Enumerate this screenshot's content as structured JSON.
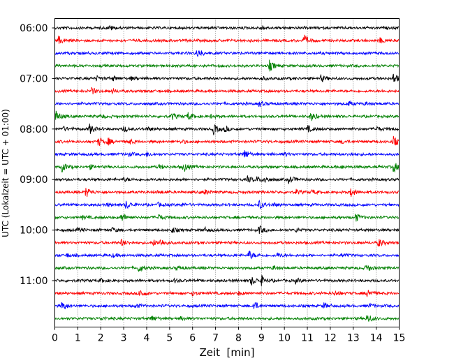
{
  "chart_data": {
    "type": "line",
    "subtype": "helicorder",
    "xlabel": "Zeit  [min]",
    "ylabel": "UTC (Lokalzeit = UTC + 01:00)",
    "xlim": [
      0,
      15
    ],
    "x_ticks": [
      "0",
      "1",
      "2",
      "3",
      "4",
      "5",
      "6",
      "7",
      "8",
      "9",
      "10",
      "11",
      "12",
      "13",
      "14",
      "15"
    ],
    "y_tick_labels": [
      "06:00",
      "07:00",
      "08:00",
      "09:00",
      "10:00",
      "11:00"
    ],
    "grid": "vertical dotted lines at each minute",
    "color_cycle": [
      "#000000",
      "#ff0000",
      "#0000ff",
      "#008000"
    ],
    "traces": [
      {
        "start": "06:00",
        "color": "black",
        "events": [
          [
            2.4,
            0.4
          ],
          [
            9.0,
            0.3
          ]
        ]
      },
      {
        "start": "06:15",
        "color": "red",
        "events": [
          [
            0.15,
            0.8
          ],
          [
            10.85,
            1.0
          ],
          [
            14.15,
            0.5
          ]
        ]
      },
      {
        "start": "06:30",
        "color": "blue",
        "events": [
          [
            6.2,
            0.9
          ]
        ]
      },
      {
        "start": "06:45",
        "color": "green",
        "events": [
          [
            9.35,
            1.0
          ]
        ]
      },
      {
        "start": "07:00",
        "color": "black",
        "events": [
          [
            1.8,
            0.4
          ],
          [
            2.5,
            0.4
          ],
          [
            3.3,
            0.3
          ],
          [
            9.0,
            0.3
          ],
          [
            11.6,
            0.6
          ],
          [
            14.75,
            1.0
          ]
        ]
      },
      {
        "start": "07:15",
        "color": "red",
        "events": [
          [
            1.6,
            0.6
          ],
          [
            2.5,
            0.4
          ]
        ]
      },
      {
        "start": "07:30",
        "color": "blue",
        "events": [
          [
            8.9,
            0.5
          ],
          [
            12.8,
            0.4
          ],
          [
            13.5,
            0.3
          ]
        ]
      },
      {
        "start": "07:45",
        "color": "green",
        "events": [
          [
            0.05,
            1.0
          ],
          [
            2.0,
            0.3
          ],
          [
            5.1,
            0.6
          ],
          [
            5.8,
            0.8
          ],
          [
            6.8,
            0.3
          ],
          [
            11.15,
            0.9
          ]
        ]
      },
      {
        "start": "08:00",
        "color": "black",
        "events": [
          [
            0.3,
            0.5
          ],
          [
            1.5,
            1.0
          ],
          [
            3.0,
            0.5
          ],
          [
            4.0,
            0.4
          ],
          [
            6.9,
            1.0
          ],
          [
            7.4,
            0.5
          ],
          [
            11.0,
            0.6
          ],
          [
            14.0,
            0.4
          ]
        ]
      },
      {
        "start": "08:15",
        "color": "red",
        "events": [
          [
            1.9,
            0.9
          ],
          [
            2.3,
            0.6
          ],
          [
            3.2,
            0.5
          ],
          [
            5.5,
            0.3
          ],
          [
            12.5,
            0.3
          ],
          [
            14.75,
            0.9
          ]
        ]
      },
      {
        "start": "08:30",
        "color": "blue",
        "events": [
          [
            3.2,
            0.3
          ],
          [
            4.0,
            0.4
          ],
          [
            8.25,
            0.9
          ],
          [
            10.0,
            0.3
          ],
          [
            12.8,
            0.3
          ]
        ]
      },
      {
        "start": "08:45",
        "color": "green",
        "events": [
          [
            0.3,
            0.9
          ],
          [
            1.5,
            0.4
          ],
          [
            4.5,
            0.4
          ],
          [
            5.6,
            0.9
          ],
          [
            12.5,
            0.3
          ],
          [
            14.75,
            1.0
          ]
        ]
      },
      {
        "start": "09:00",
        "color": "black",
        "events": [
          [
            3.0,
            0.3
          ],
          [
            8.4,
            0.6
          ],
          [
            8.8,
            0.4
          ],
          [
            9.1,
            0.6
          ],
          [
            10.2,
            0.8
          ]
        ]
      },
      {
        "start": "09:15",
        "color": "red",
        "events": [
          [
            1.35,
            1.0
          ],
          [
            4.5,
            0.3
          ],
          [
            6.5,
            0.5
          ],
          [
            10.5,
            0.4
          ],
          [
            11.2,
            0.4
          ],
          [
            12.9,
            0.8
          ]
        ]
      },
      {
        "start": "09:30",
        "color": "blue",
        "events": [
          [
            2.3,
            0.3
          ],
          [
            3.1,
            0.8
          ],
          [
            4.5,
            0.3
          ],
          [
            5.5,
            0.3
          ],
          [
            8.9,
            0.8
          ],
          [
            9.5,
            0.4
          ]
        ]
      },
      {
        "start": "09:45",
        "color": "green",
        "events": [
          [
            1.2,
            0.3
          ],
          [
            2.9,
            0.9
          ],
          [
            4.5,
            0.6
          ],
          [
            13.1,
            0.8
          ]
        ]
      },
      {
        "start": "10:00",
        "color": "black",
        "events": [
          [
            1.0,
            0.3
          ],
          [
            2.5,
            0.4
          ],
          [
            5.1,
            0.5
          ],
          [
            6.5,
            0.4
          ],
          [
            8.9,
            0.8
          ],
          [
            10.5,
            0.3
          ]
        ]
      },
      {
        "start": "10:15",
        "color": "red",
        "events": [
          [
            2.9,
            0.6
          ],
          [
            4.3,
            0.5
          ],
          [
            4.6,
            0.6
          ],
          [
            14.1,
            0.8
          ]
        ]
      },
      {
        "start": "10:30",
        "color": "blue",
        "events": [
          [
            0.5,
            0.3
          ],
          [
            2.5,
            0.3
          ],
          [
            8.45,
            0.9
          ],
          [
            9.7,
            0.4
          ],
          [
            12.5,
            0.3
          ]
        ]
      },
      {
        "start": "10:45",
        "color": "green",
        "events": [
          [
            3.65,
            0.8
          ],
          [
            5.3,
            0.3
          ],
          [
            9.5,
            0.4
          ],
          [
            13.55,
            0.8
          ]
        ]
      },
      {
        "start": "11:00",
        "color": "black",
        "events": [
          [
            2.0,
            0.3
          ],
          [
            5.2,
            0.3
          ],
          [
            8.55,
            0.9
          ],
          [
            9.0,
            0.8
          ],
          [
            10.5,
            0.4
          ]
        ]
      },
      {
        "start": "11:15",
        "color": "red",
        "events": [
          [
            3.7,
            0.9
          ],
          [
            6.0,
            0.4
          ],
          [
            8.0,
            0.3
          ],
          [
            12.2,
            0.4
          ],
          [
            13.6,
            0.9
          ]
        ]
      },
      {
        "start": "11:30",
        "color": "blue",
        "events": [
          [
            0.3,
            0.8
          ],
          [
            3.5,
            0.4
          ],
          [
            8.65,
            0.9
          ],
          [
            11.7,
            0.5
          ],
          [
            13.7,
            0.3
          ]
        ]
      },
      {
        "start": "11:45",
        "color": "green",
        "events": [
          [
            2.0,
            0.3
          ],
          [
            4.2,
            0.6
          ],
          [
            5.5,
            0.3
          ],
          [
            13.6,
            0.9
          ]
        ]
      }
    ]
  }
}
